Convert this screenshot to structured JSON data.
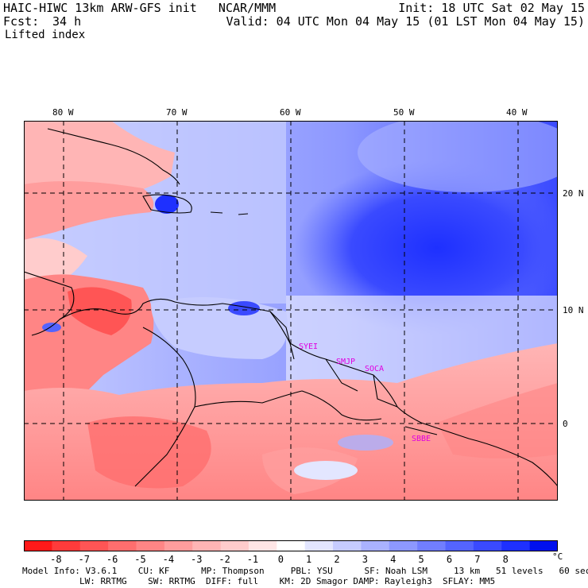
{
  "header": {
    "model_line": "HAIC-HIWC 13km ARW-GFS init   NCAR/MMM",
    "init_line": "Init: 18 UTC Sat 02 May 15",
    "fcst_label": "Fcst:",
    "fcst_value": "34 h",
    "valid_line": "Valid: 04 UTC Mon 04 May 15 (01 LST Mon 04 May 15)",
    "field_name": "Lifted index"
  },
  "map": {
    "lon_labels": [
      "80 W",
      "70 W",
      "60 W",
      "50 W",
      "40 W"
    ],
    "lat_labels": [
      "20 N",
      "10 N",
      "0"
    ],
    "stations": [
      "SYEI",
      "SMJP",
      "SOCA",
      "SBBE"
    ],
    "colors": {
      "station_text": "#e000e0",
      "grid": "#000000",
      "border": "#000000"
    }
  },
  "colorbar": {
    "unit": "°C",
    "labels": [
      "-8",
      "-7",
      "-6",
      "-5",
      "-4",
      "-3",
      "-2",
      "-1",
      "0",
      "1",
      "2",
      "3",
      "4",
      "5",
      "6",
      "7",
      "8"
    ],
    "colors": [
      "#ff1a1a",
      "#ff3b3b",
      "#ff5555",
      "#ff6e6e",
      "#ff8585",
      "#ff9d9d",
      "#ffb5b5",
      "#ffcccc",
      "#ffe6e6",
      "#ffffff",
      "#e3e6ff",
      "#c6ccff",
      "#aab2ff",
      "#8d98ff",
      "#717eff",
      "#5464ff",
      "#3a4aff",
      "#1e30ff",
      "#0010ee"
    ]
  },
  "model_info": {
    "line1": "Model Info: V3.6.1    CU: KF      MP: Thompson     PBL: YSU      SF: Noah LSM     13 km   51 levels   60 sec",
    "line2": "LW: RRTMG    SW: RRTMG  DIFF: full    KM: 2D Smagor DAMP: Rayleigh3  SFLAY: MM5"
  }
}
